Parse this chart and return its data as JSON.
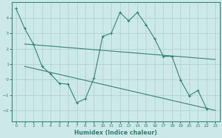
{
  "xlabel": "Humidex (Indice chaleur)",
  "bg_color": "#cce8e8",
  "line_color": "#2e7d72",
  "grid_color": "#aacece",
  "xlim": [
    -0.5,
    23.5
  ],
  "ylim": [
    -2.7,
    5.0
  ],
  "yticks": [
    -2,
    -1,
    0,
    1,
    2,
    3,
    4
  ],
  "xticks": [
    0,
    1,
    2,
    3,
    4,
    5,
    6,
    7,
    8,
    9,
    10,
    11,
    12,
    13,
    14,
    15,
    16,
    17,
    18,
    19,
    20,
    21,
    22,
    23
  ],
  "series1_x": [
    0,
    1,
    2,
    3,
    4,
    5,
    6,
    7,
    8,
    9,
    10,
    11,
    12,
    13,
    14,
    15,
    16,
    17,
    18,
    19,
    20,
    21,
    22
  ],
  "series1_y": [
    4.6,
    3.3,
    2.3,
    0.85,
    0.35,
    -0.25,
    -0.3,
    -1.5,
    -1.25,
    0.1,
    2.8,
    3.0,
    4.35,
    3.8,
    4.35,
    3.55,
    2.65,
    1.5,
    1.5,
    -0.05,
    -1.05,
    -0.7,
    -1.9
  ],
  "series2_x": [
    1,
    23
  ],
  "series2_y": [
    2.3,
    1.3
  ],
  "series3_x": [
    1,
    23
  ],
  "series3_y": [
    0.85,
    -2.0
  ]
}
